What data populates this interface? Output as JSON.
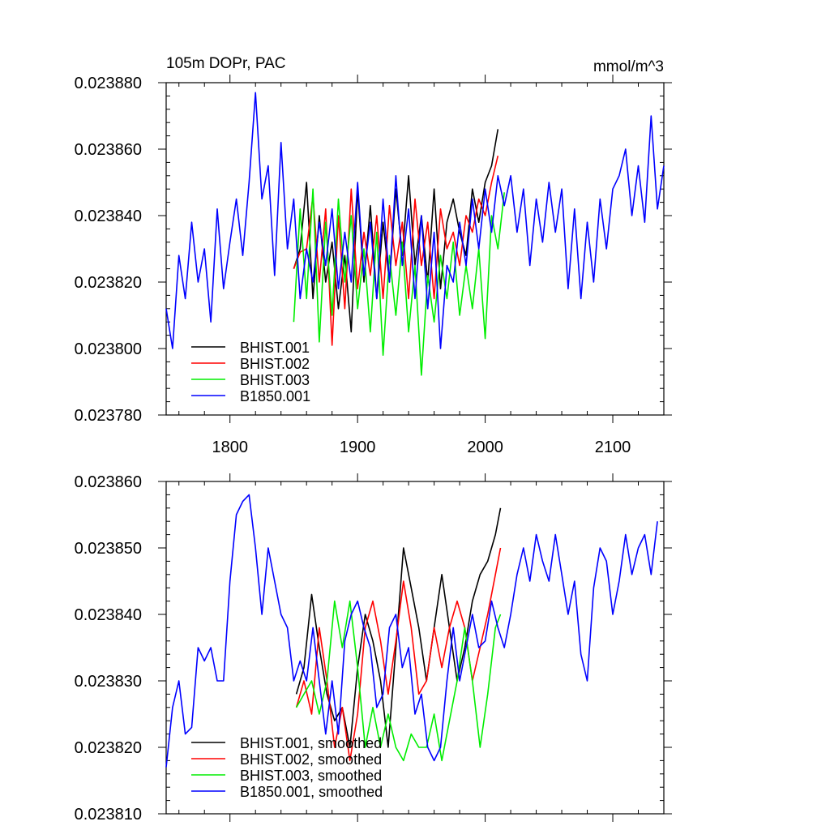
{
  "chart_data": [
    {
      "type": "line",
      "title": "105m DOPr, PAC",
      "units": "mmol/m^3",
      "xlim": [
        1750,
        2140
      ],
      "ylim": [
        0.02378,
        0.02388
      ],
      "xticks": [
        1800,
        1900,
        2000,
        2100
      ],
      "xtick_labels": [
        "1800",
        "1900",
        "2000",
        "2100"
      ],
      "yticks": [
        0.02378,
        0.0238,
        0.02382,
        0.02384,
        0.02386,
        0.02388
      ],
      "ytick_labels": [
        "0.023780",
        "0.023800",
        "0.023820",
        "0.023840",
        "0.023860",
        "0.023880"
      ],
      "legend_position": "bottom-left",
      "series": [
        {
          "name": "BHIST.001",
          "color": "#000000",
          "x": [
            1850,
            1855,
            1860,
            1865,
            1870,
            1875,
            1880,
            1885,
            1890,
            1895,
            1900,
            1905,
            1910,
            1915,
            1920,
            1925,
            1930,
            1935,
            1940,
            1945,
            1950,
            1955,
            1960,
            1965,
            1970,
            1975,
            1980,
            1985,
            1990,
            1995,
            2000,
            2005,
            2010
          ],
          "y": [
            0.023824,
            0.02383,
            0.02385,
            0.023815,
            0.02384,
            0.02382,
            0.023832,
            0.023812,
            0.023828,
            0.023805,
            0.023848,
            0.02382,
            0.023843,
            0.023815,
            0.023838,
            0.02382,
            0.023848,
            0.023828,
            0.023852,
            0.023825,
            0.02384,
            0.02382,
            0.023848,
            0.023818,
            0.023838,
            0.023845,
            0.023835,
            0.023828,
            0.023848,
            0.023838,
            0.02385,
            0.023855,
            0.023866
          ]
        },
        {
          "name": "BHIST.002",
          "color": "#ff0000",
          "x": [
            1850,
            1855,
            1860,
            1865,
            1870,
            1875,
            1880,
            1885,
            1890,
            1895,
            1900,
            1905,
            1910,
            1915,
            1920,
            1925,
            1930,
            1935,
            1940,
            1945,
            1950,
            1955,
            1960,
            1965,
            1970,
            1975,
            1980,
            1985,
            1990,
            1995,
            2000,
            2005,
            2010
          ],
          "y": [
            0.023824,
            0.023829,
            0.02383,
            0.023846,
            0.02382,
            0.023842,
            0.023801,
            0.02384,
            0.023812,
            0.023848,
            0.023818,
            0.023835,
            0.023822,
            0.02384,
            0.023815,
            0.023843,
            0.023825,
            0.023838,
            0.023815,
            0.023845,
            0.023825,
            0.023838,
            0.023815,
            0.023842,
            0.02383,
            0.023835,
            0.023825,
            0.02384,
            0.023835,
            0.023845,
            0.02384,
            0.02385,
            0.023858
          ]
        },
        {
          "name": "BHIST.003",
          "color": "#00ee00",
          "x": [
            1850,
            1855,
            1860,
            1865,
            1870,
            1875,
            1880,
            1885,
            1890,
            1895,
            1900,
            1905,
            1910,
            1915,
            1920,
            1925,
            1930,
            1935,
            1940,
            1945,
            1950,
            1955,
            1960,
            1965,
            1970,
            1975,
            1980,
            1985,
            1990,
            1995,
            2000,
            2005,
            2010,
            2015
          ],
          "y": [
            0.023808,
            0.023842,
            0.023815,
            0.023848,
            0.023802,
            0.023838,
            0.02381,
            0.023845,
            0.02382,
            0.02384,
            0.023812,
            0.02383,
            0.023805,
            0.023835,
            0.023798,
            0.023828,
            0.02381,
            0.023832,
            0.023805,
            0.023825,
            0.023792,
            0.023822,
            0.023808,
            0.023828,
            0.023815,
            0.023832,
            0.02381,
            0.023825,
            0.023812,
            0.02383,
            0.023803,
            0.02384,
            0.02383,
            0.023847
          ]
        },
        {
          "name": "B1850.001",
          "color": "#0000ff",
          "x": [
            1750,
            1755,
            1760,
            1765,
            1770,
            1775,
            1780,
            1785,
            1790,
            1795,
            1800,
            1805,
            1810,
            1815,
            1820,
            1825,
            1830,
            1835,
            1840,
            1845,
            1850,
            1855,
            1860,
            1865,
            1870,
            1875,
            1880,
            1885,
            1890,
            1895,
            1900,
            1905,
            1910,
            1915,
            1920,
            1925,
            1930,
            1935,
            1940,
            1945,
            1950,
            1955,
            1960,
            1965,
            1970,
            1975,
            1980,
            1985,
            1990,
            1995,
            2000,
            2005,
            2010,
            2015,
            2020,
            2025,
            2030,
            2035,
            2040,
            2045,
            2050,
            2055,
            2060,
            2065,
            2070,
            2075,
            2080,
            2085,
            2090,
            2095,
            2100,
            2105,
            2110,
            2115,
            2120,
            2125,
            2130,
            2135,
            2140
          ],
          "y": [
            0.023812,
            0.0238,
            0.023828,
            0.023815,
            0.023838,
            0.02382,
            0.02383,
            0.023808,
            0.023842,
            0.023818,
            0.023832,
            0.023845,
            0.023828,
            0.02385,
            0.023877,
            0.023845,
            0.023855,
            0.023822,
            0.023862,
            0.02383,
            0.023845,
            0.023815,
            0.02383,
            0.02382,
            0.023838,
            0.023825,
            0.023842,
            0.023818,
            0.023835,
            0.02382,
            0.02385,
            0.023822,
            0.023838,
            0.023815,
            0.023845,
            0.02382,
            0.023852,
            0.023825,
            0.023842,
            0.023815,
            0.02384,
            0.023812,
            0.023835,
            0.0238,
            0.023825,
            0.02382,
            0.023838,
            0.023825,
            0.023845,
            0.02383,
            0.023848,
            0.023835,
            0.023852,
            0.023843,
            0.023852,
            0.023835,
            0.023848,
            0.023825,
            0.023845,
            0.023832,
            0.02385,
            0.023835,
            0.023848,
            0.023818,
            0.023842,
            0.023815,
            0.023838,
            0.02382,
            0.023845,
            0.02383,
            0.023848,
            0.023852,
            0.02386,
            0.02384,
            0.023855,
            0.023838,
            0.02387,
            0.023842,
            0.023855
          ]
        }
      ]
    },
    {
      "type": "line",
      "title": "",
      "xlim": [
        1750,
        2140
      ],
      "ylim": [
        0.02381,
        0.02386
      ],
      "xticks": [
        1800,
        1900,
        2000,
        2100
      ],
      "yticks": [
        0.02381,
        0.02382,
        0.02383,
        0.02384,
        0.02385,
        0.02386
      ],
      "ytick_labels": [
        "0.023810",
        "0.023820",
        "0.023830",
        "0.023840",
        "0.023850",
        "0.023860"
      ],
      "legend_position": "bottom-left",
      "series": [
        {
          "name": "BHIST.001, smoothed",
          "color": "#000000",
          "x": [
            1852,
            1858,
            1864,
            1870,
            1876,
            1882,
            1888,
            1894,
            1900,
            1906,
            1912,
            1918,
            1924,
            1930,
            1936,
            1942,
            1948,
            1954,
            1960,
            1966,
            1972,
            1978,
            1984,
            1990,
            1996,
            2002,
            2008,
            2012
          ],
          "y": [
            0.023828,
            0.023832,
            0.023843,
            0.023835,
            0.023828,
            0.023824,
            0.023826,
            0.02382,
            0.023832,
            0.02384,
            0.023836,
            0.02383,
            0.02382,
            0.023835,
            0.02385,
            0.023844,
            0.023838,
            0.02383,
            0.023838,
            0.023846,
            0.023838,
            0.02383,
            0.023835,
            0.023842,
            0.023846,
            0.023848,
            0.023852,
            0.023856
          ]
        },
        {
          "name": "BHIST.002, smoothed",
          "color": "#ff0000",
          "x": [
            1852,
            1858,
            1864,
            1870,
            1876,
            1882,
            1888,
            1894,
            1900,
            1906,
            1912,
            1918,
            1924,
            1930,
            1936,
            1942,
            1948,
            1954,
            1960,
            1966,
            1972,
            1978,
            1984,
            1990,
            1996,
            2002,
            2008,
            2012
          ],
          "y": [
            0.023826,
            0.02383,
            0.023825,
            0.023838,
            0.02383,
            0.02382,
            0.023826,
            0.023818,
            0.023825,
            0.023838,
            0.023842,
            0.023836,
            0.023828,
            0.023836,
            0.023845,
            0.023838,
            0.023828,
            0.02383,
            0.023838,
            0.023832,
            0.023838,
            0.023842,
            0.023838,
            0.02383,
            0.023835,
            0.02384,
            0.023846,
            0.02385
          ]
        },
        {
          "name": "BHIST.003, smoothed",
          "color": "#00ee00",
          "x": [
            1852,
            1858,
            1864,
            1870,
            1876,
            1882,
            1888,
            1894,
            1900,
            1906,
            1912,
            1918,
            1924,
            1930,
            1936,
            1942,
            1948,
            1954,
            1960,
            1966,
            1972,
            1978,
            1984,
            1990,
            1996,
            2002,
            2008,
            2012
          ],
          "y": [
            0.023826,
            0.023828,
            0.02383,
            0.023825,
            0.02383,
            0.023842,
            0.023835,
            0.023842,
            0.023832,
            0.02382,
            0.023826,
            0.02382,
            0.023825,
            0.02382,
            0.023818,
            0.023822,
            0.02382,
            0.02382,
            0.023825,
            0.023818,
            0.023824,
            0.02383,
            0.023838,
            0.02383,
            0.02382,
            0.023828,
            0.023838,
            0.02384
          ]
        },
        {
          "name": "B1850.001, smoothed",
          "color": "#0000ff",
          "x": [
            1750,
            1755,
            1760,
            1765,
            1770,
            1775,
            1780,
            1785,
            1790,
            1795,
            1800,
            1805,
            1810,
            1815,
            1820,
            1825,
            1830,
            1835,
            1840,
            1845,
            1850,
            1855,
            1860,
            1865,
            1870,
            1875,
            1880,
            1885,
            1890,
            1895,
            1900,
            1905,
            1910,
            1915,
            1920,
            1925,
            1930,
            1935,
            1940,
            1945,
            1950,
            1955,
            1960,
            1965,
            1970,
            1975,
            1980,
            1985,
            1990,
            1995,
            2000,
            2005,
            2010,
            2015,
            2020,
            2025,
            2030,
            2035,
            2040,
            2045,
            2050,
            2055,
            2060,
            2065,
            2070,
            2075,
            2080,
            2085,
            2090,
            2095,
            2100,
            2105,
            2110,
            2115,
            2120,
            2125,
            2130,
            2135
          ],
          "y": [
            0.023817,
            0.023826,
            0.02383,
            0.023822,
            0.023823,
            0.023835,
            0.023833,
            0.023835,
            0.02383,
            0.02383,
            0.023845,
            0.023855,
            0.023857,
            0.023858,
            0.02385,
            0.02384,
            0.02385,
            0.023845,
            0.02384,
            0.023838,
            0.02383,
            0.023833,
            0.02383,
            0.023838,
            0.02383,
            0.023822,
            0.02383,
            0.023822,
            0.023836,
            0.02384,
            0.023842,
            0.023838,
            0.023835,
            0.023826,
            0.023828,
            0.023838,
            0.02384,
            0.023832,
            0.023835,
            0.023825,
            0.023828,
            0.02382,
            0.023818,
            0.02382,
            0.02383,
            0.023838,
            0.02383,
            0.023835,
            0.02384,
            0.023835,
            0.023836,
            0.023842,
            0.023838,
            0.023835,
            0.02384,
            0.023846,
            0.02385,
            0.023845,
            0.023852,
            0.023848,
            0.023845,
            0.023852,
            0.023846,
            0.02384,
            0.023845,
            0.023834,
            0.02383,
            0.023844,
            0.02385,
            0.023848,
            0.02384,
            0.023845,
            0.023852,
            0.023846,
            0.02385,
            0.023852,
            0.023846,
            0.023854
          ]
        }
      ]
    }
  ]
}
